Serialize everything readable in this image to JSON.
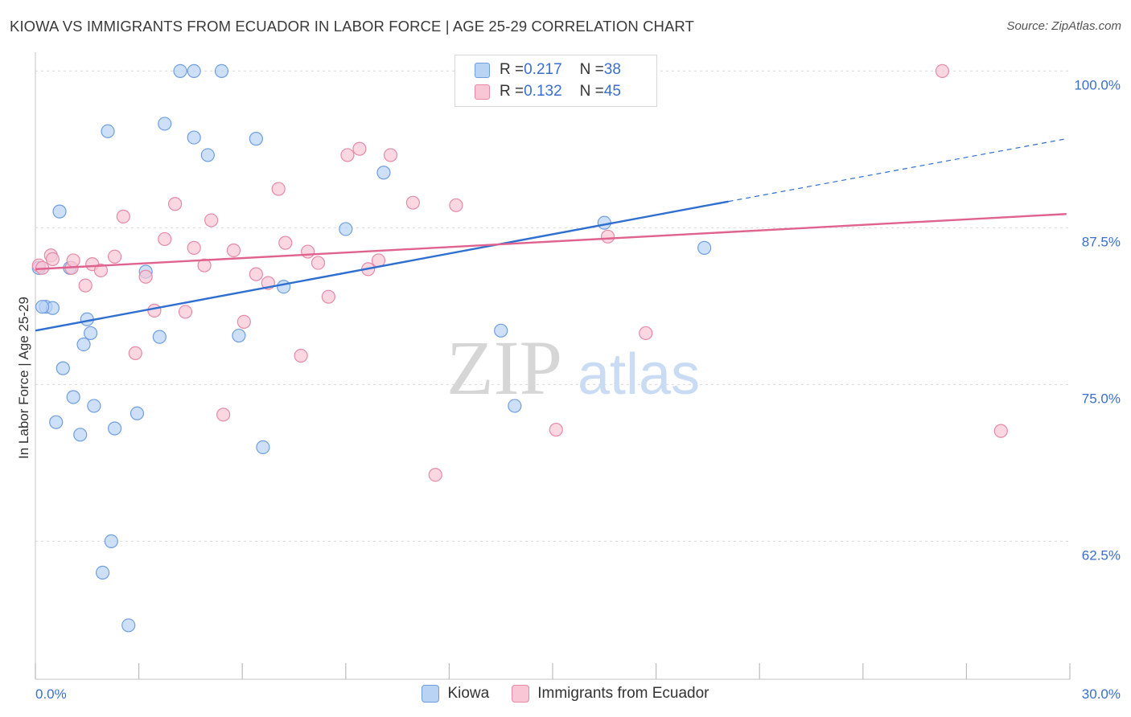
{
  "header": {
    "title": "KIOWA VS IMMIGRANTS FROM ECUADOR IN LABOR FORCE | AGE 25-29 CORRELATION CHART",
    "source": "Source: ZipAtlas.com"
  },
  "watermark": {
    "part1": "ZIP",
    "part2": "atlas"
  },
  "legend_top": {
    "rows": [
      {
        "r_label": "R = ",
        "r_value": "0.217",
        "n_label": "N = ",
        "n_value": "38"
      },
      {
        "r_label": "R = ",
        "r_value": "0.132",
        "n_label": "N = ",
        "n_value": "45"
      }
    ]
  },
  "legend_bottom": {
    "items": [
      "Kiowa",
      "Immigrants from Ecuador"
    ]
  },
  "colors": {
    "kiowa_fill": "#b9d3f5",
    "kiowa_stroke": "#6f9ee0",
    "kiowa_line": "#2f6fd0",
    "ecuador_fill": "#f8c6d4",
    "ecuador_stroke": "#e58aa7",
    "ecuador_line": "#e0628e",
    "tick_label": "#3a6fd0",
    "grid": "#d9d9d9"
  },
  "chart_data": {
    "type": "scatter",
    "title": "KIOWA VS IMMIGRANTS FROM ECUADOR IN LABOR FORCE | AGE 25-29 CORRELATION CHART",
    "xlabel": "",
    "ylabel": "In Labor Force | Age 25-29",
    "xlim": [
      0,
      30
    ],
    "ylim": [
      51.5,
      101.5
    ],
    "x_tick_labels": [
      "0.0%",
      "30.0%"
    ],
    "y_ticks": [
      62.5,
      75.0,
      87.5,
      100.0
    ],
    "y_tick_labels": [
      "62.5%",
      "75.0%",
      "87.5%",
      "100.0%"
    ],
    "grid": "horizontal dashed",
    "legend_placement": "top-center and bottom",
    "series": [
      {
        "name": "Kiowa",
        "R": 0.217,
        "N": 38,
        "trend": {
          "x": [
            0,
            20.1
          ],
          "y": [
            79.3,
            89.6
          ],
          "dashed_extension": {
            "x": [
              20.1,
              29.9
            ],
            "y": [
              89.6,
              94.6
            ]
          }
        },
        "points": [
          [
            0.1,
            84.3
          ],
          [
            0.3,
            81.2
          ],
          [
            0.5,
            81.1
          ],
          [
            0.7,
            88.8
          ],
          [
            0.6,
            72.0
          ],
          [
            0.8,
            76.3
          ],
          [
            1.1,
            74.0
          ],
          [
            1.3,
            71.0
          ],
          [
            1.4,
            78.2
          ],
          [
            1.5,
            80.2
          ],
          [
            1.6,
            79.1
          ],
          [
            1.7,
            73.3
          ],
          [
            2.1,
            95.2
          ],
          [
            2.2,
            62.5
          ],
          [
            2.3,
            71.5
          ],
          [
            1.95,
            60.0
          ],
          [
            2.7,
            55.8
          ],
          [
            2.95,
            72.7
          ],
          [
            3.2,
            84.0
          ],
          [
            3.6,
            78.8
          ],
          [
            3.75,
            95.8
          ],
          [
            4.2,
            100.0
          ],
          [
            4.6,
            100.0
          ],
          [
            4.6,
            94.7
          ],
          [
            5.0,
            93.3
          ],
          [
            5.4,
            100.0
          ],
          [
            5.9,
            78.9
          ],
          [
            6.4,
            94.6
          ],
          [
            6.6,
            70.0
          ],
          [
            7.2,
            82.8
          ],
          [
            9.0,
            87.4
          ],
          [
            10.1,
            91.9
          ],
          [
            13.5,
            79.3
          ],
          [
            13.9,
            73.3
          ],
          [
            16.5,
            87.9
          ],
          [
            19.4,
            85.9
          ],
          [
            1.0,
            84.3
          ],
          [
            0.2,
            81.2
          ]
        ]
      },
      {
        "name": "Immigrants from Ecuador",
        "R": 0.132,
        "N": 45,
        "trend": {
          "x": [
            0,
            29.9
          ],
          "y": [
            84.2,
            88.6
          ]
        },
        "points": [
          [
            0.1,
            84.5
          ],
          [
            0.45,
            85.3
          ],
          [
            1.05,
            84.3
          ],
          [
            1.1,
            84.9
          ],
          [
            1.45,
            82.9
          ],
          [
            1.65,
            84.6
          ],
          [
            1.9,
            84.1
          ],
          [
            2.3,
            85.2
          ],
          [
            2.55,
            88.4
          ],
          [
            2.9,
            77.5
          ],
          [
            3.2,
            83.6
          ],
          [
            3.45,
            80.9
          ],
          [
            3.75,
            86.6
          ],
          [
            4.05,
            89.4
          ],
          [
            4.35,
            80.8
          ],
          [
            4.6,
            85.9
          ],
          [
            4.9,
            84.5
          ],
          [
            5.1,
            88.1
          ],
          [
            5.45,
            72.6
          ],
          [
            5.75,
            85.7
          ],
          [
            6.05,
            80.0
          ],
          [
            6.4,
            83.8
          ],
          [
            6.75,
            83.1
          ],
          [
            7.05,
            90.6
          ],
          [
            7.25,
            86.3
          ],
          [
            7.7,
            77.3
          ],
          [
            7.9,
            85.6
          ],
          [
            8.2,
            84.7
          ],
          [
            8.5,
            82.0
          ],
          [
            9.05,
            93.3
          ],
          [
            9.4,
            93.8
          ],
          [
            9.65,
            84.2
          ],
          [
            9.95,
            84.9
          ],
          [
            10.3,
            93.3
          ],
          [
            10.95,
            89.5
          ],
          [
            11.6,
            67.8
          ],
          [
            12.2,
            89.3
          ],
          [
            15.1,
            71.4
          ],
          [
            16.1,
            100.0
          ],
          [
            16.6,
            86.8
          ],
          [
            17.7,
            79.1
          ],
          [
            26.3,
            100.0
          ],
          [
            28.0,
            71.3
          ],
          [
            0.2,
            84.3
          ],
          [
            0.5,
            85.0
          ]
        ]
      }
    ]
  }
}
